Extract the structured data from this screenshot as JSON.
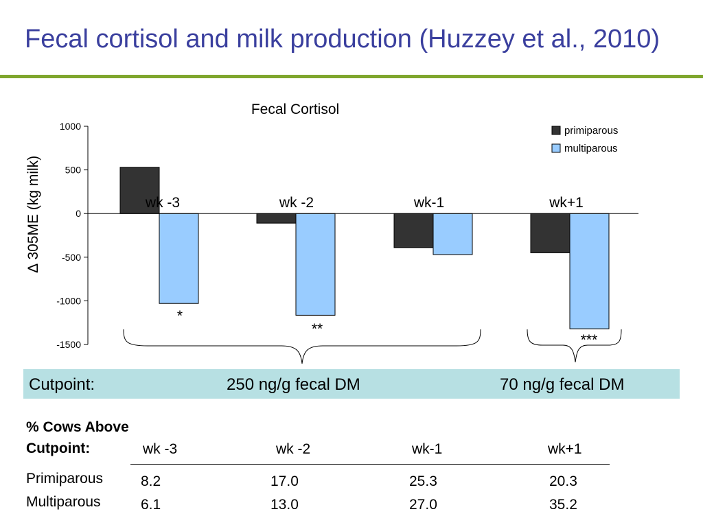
{
  "slide": {
    "title": "Fecal cortisol and milk production (Huzzey et al., 2010)"
  },
  "chart_data": {
    "type": "bar",
    "title": "Fecal Cortisol",
    "ylabel": "∆ 305ME (kg milk)",
    "xlabel": "",
    "categories": [
      "wk -3",
      "wk -2",
      "wk-1",
      "wk+1"
    ],
    "series": [
      {
        "name": "primiparous",
        "values": [
          530,
          -110,
          -390,
          -450
        ],
        "color": "#333333"
      },
      {
        "name": "multiparous",
        "values": [
          -1030,
          -1165,
          -470,
          -1320
        ],
        "color": "#99ccff"
      }
    ],
    "ylim": [
      -1500,
      1000
    ],
    "yticks": [
      1000,
      500,
      0,
      -500,
      -1000,
      -1500
    ],
    "significance": [
      "*",
      "**",
      "",
      "***"
    ],
    "legend_position": "top-right",
    "grid": false
  },
  "cutpoint": {
    "label": "Cutpoint:",
    "group1": "250 ng/g fecal DM",
    "group2": "70 ng/g fecal DM"
  },
  "table": {
    "heading_line1": "% Cows Above",
    "heading_line2": "Cutpoint:",
    "columns": [
      "wk -3",
      "wk -2",
      "wk-1",
      "wk+1"
    ],
    "rows": [
      {
        "label": "Primiparous",
        "values": [
          "8.2",
          "17.0",
          "25.3",
          "20.3"
        ]
      },
      {
        "label": "Multiparous",
        "values": [
          "6.1",
          "13.0",
          "27.0",
          "35.2"
        ]
      }
    ]
  }
}
